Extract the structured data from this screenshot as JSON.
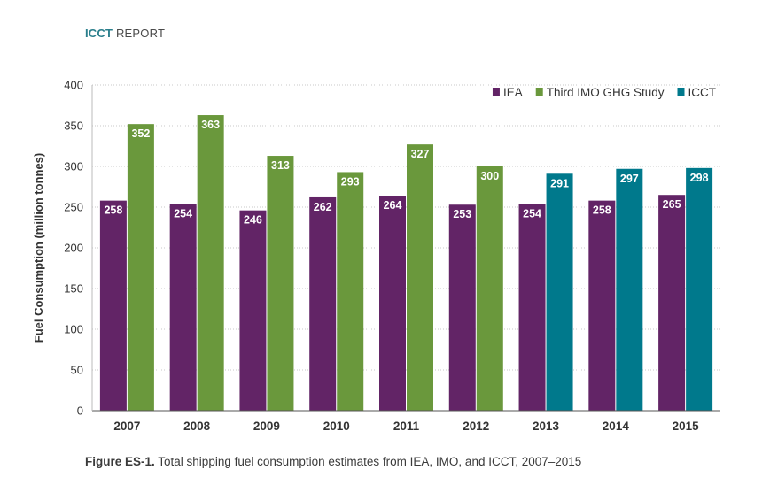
{
  "header": {
    "brand": "ICCT",
    "report": "REPORT"
  },
  "caption": {
    "figure_label": "Figure ES-1.",
    "text": "Total shipping fuel consumption estimates from IEA, IMO, and ICCT, 2007–2015"
  },
  "chart_data": {
    "type": "bar",
    "title": "",
    "xlabel": "",
    "ylabel": "Fuel Consumption (million tonnes)",
    "ylim": [
      0,
      400
    ],
    "yticks": [
      0,
      50,
      100,
      150,
      200,
      250,
      300,
      350,
      400
    ],
    "grid": "horizontal dotted",
    "legend_position": "top-right",
    "categories": [
      "2007",
      "2008",
      "2009",
      "2010",
      "2011",
      "2012",
      "2013",
      "2014",
      "2015"
    ],
    "series": [
      {
        "name": "IEA",
        "color": "#622466",
        "values": [
          258,
          254,
          246,
          262,
          264,
          253,
          254,
          258,
          265
        ]
      },
      {
        "name": "Third IMO GHG Study",
        "color": "#6a983c",
        "values": [
          352,
          363,
          313,
          293,
          327,
          300,
          null,
          null,
          null
        ]
      },
      {
        "name": "ICCT",
        "color": "#00798c",
        "values": [
          null,
          null,
          null,
          null,
          null,
          null,
          291,
          297,
          298
        ]
      }
    ]
  }
}
